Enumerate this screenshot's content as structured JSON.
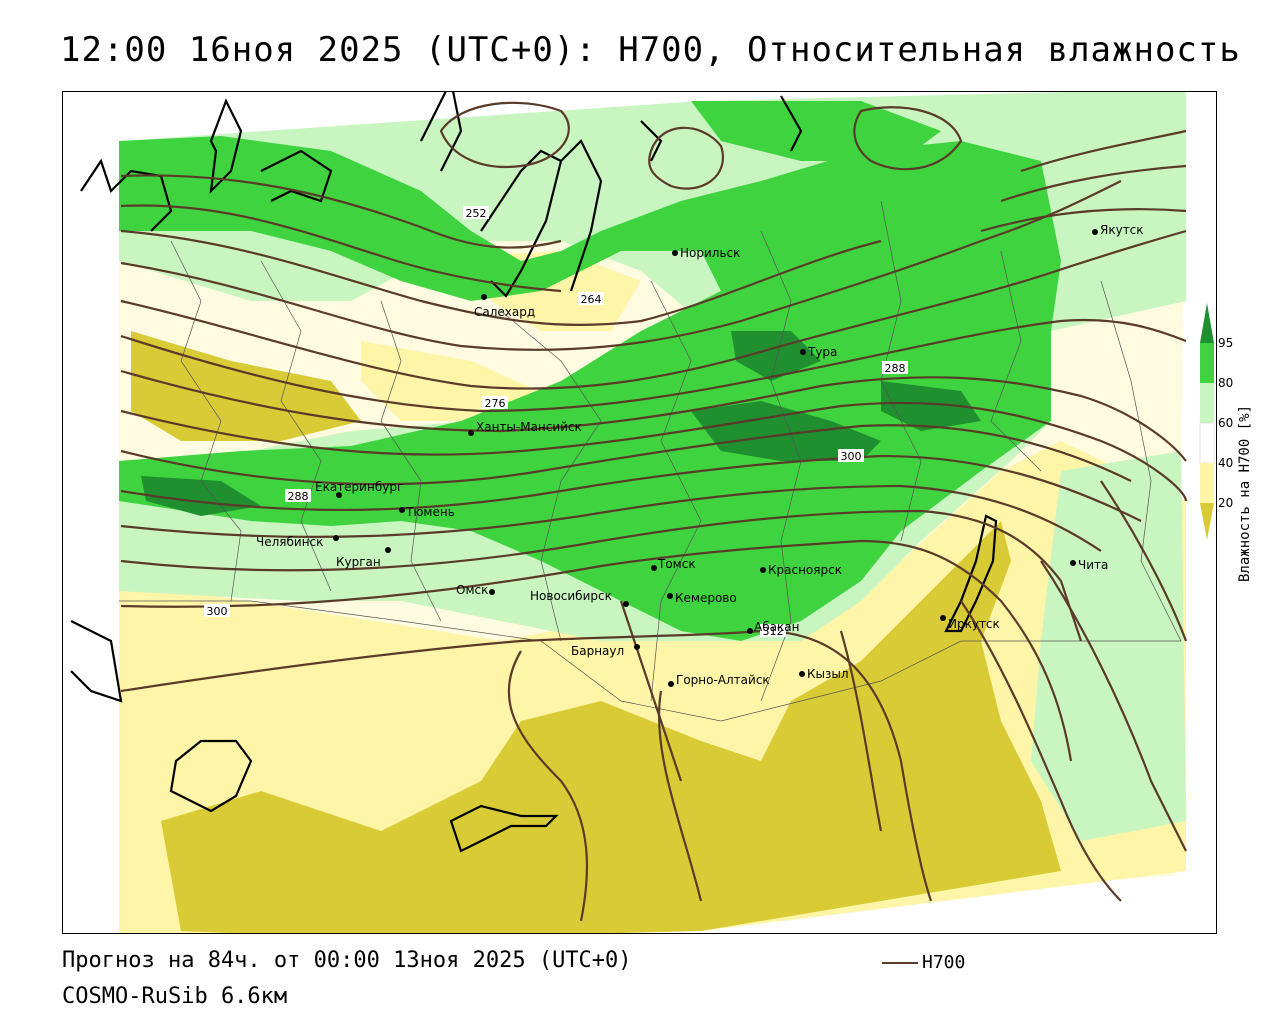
{
  "title": "12:00 16ноя 2025 (UTC+0): H700, Относительная влажность",
  "footer": {
    "forecast": "Прогноз на 84ч. от 00:00 13ноя 2025 (UTC+0)",
    "model": "COSMO-RuSib 6.6км",
    "key_label": "H700"
  },
  "legend": {
    "title": "Влажность на H700 [%]",
    "ticks": [
      "95",
      "80",
      "60",
      "40",
      "20"
    ],
    "colors": {
      "c95": "#1f8f2f",
      "c80": "#3fd43f",
      "c60": "#c8f5c0",
      "c40": "#ffffff",
      "c20": "#fff5a8",
      "c0": "#d9cb35"
    }
  },
  "contour_color": "#5a3a28",
  "contour_labels": [
    "252",
    "264",
    "276",
    "288",
    "288",
    "300",
    "300",
    "312"
  ],
  "cities": [
    {
      "name": "Салехард"
    },
    {
      "name": "Норильск"
    },
    {
      "name": "Якутск"
    },
    {
      "name": "Тура"
    },
    {
      "name": "Ханты-Мансийск"
    },
    {
      "name": "Екатеринбург"
    },
    {
      "name": "Тюмень"
    },
    {
      "name": "Челябинск"
    },
    {
      "name": "Курган"
    },
    {
      "name": "Омск"
    },
    {
      "name": "Новосибирск"
    },
    {
      "name": "Томск"
    },
    {
      "name": "Кемерово"
    },
    {
      "name": "Красноярск"
    },
    {
      "name": "Абакан"
    },
    {
      "name": "Барнаул"
    },
    {
      "name": "Горно-Алтайск"
    },
    {
      "name": "Кызыл"
    },
    {
      "name": "Иркутск"
    },
    {
      "name": "Чита"
    }
  ]
}
